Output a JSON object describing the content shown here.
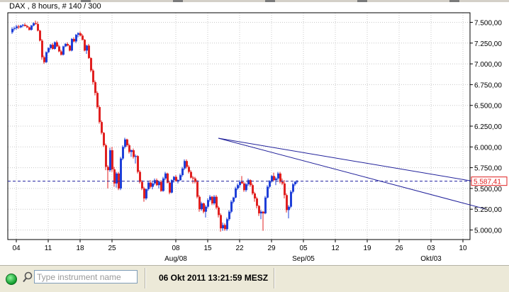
{
  "title": "DAX , 8 hours, # 140 / 300",
  "price_tag": "5.587,41",
  "status": {
    "search_placeholder": "Type instrument name",
    "datetime": "06 Okt 2011 13:21:59 MESZ"
  },
  "colors": {
    "up": "#1f3fd8",
    "down": "#e02020",
    "trend": "#20209a",
    "grid": "#c8c8c8",
    "price_line": "#2020a0"
  },
  "chart_data": {
    "type": "candlestick",
    "instrument": "DAX",
    "interval": "8 hours",
    "ylim": [
      4850,
      7650
    ],
    "y_ticks": [
      5000,
      5250,
      5500,
      5750,
      6000,
      6250,
      6500,
      6750,
      7000,
      7250,
      7500
    ],
    "y_tick_labels": [
      "5.000,00",
      "5.250,00",
      "5.500,00",
      "5.750,00",
      "6.000,00",
      "6.250,00",
      "6.500,00",
      "6.750,00",
      "7.000,00",
      "7.250,00",
      "7.500,00"
    ],
    "x_ticks": [
      {
        "i": 2,
        "label": "04"
      },
      {
        "i": 17,
        "label": "11"
      },
      {
        "i": 32,
        "label": "18"
      },
      {
        "i": 47,
        "label": "25"
      },
      {
        "i": 77,
        "label": "08"
      },
      {
        "i": 92,
        "label": "15"
      },
      {
        "i": 107,
        "label": "22"
      },
      {
        "i": 122,
        "label": "29"
      },
      {
        "i": 137,
        "label": "05"
      },
      {
        "i": 152,
        "label": "12"
      },
      {
        "i": 167,
        "label": "19"
      },
      {
        "i": 182,
        "label": "26"
      },
      {
        "i": 197,
        "label": "03"
      },
      {
        "i": 212,
        "label": "10"
      }
    ],
    "x_major_labels": [
      {
        "i": 77,
        "label": "Aug/08"
      },
      {
        "i": 137,
        "label": "Sep/05"
      },
      {
        "i": 197,
        "label": "Okt/03"
      }
    ],
    "last_price": 5587.41,
    "candles": [
      [
        7380,
        7440,
        7360,
        7420
      ],
      [
        7420,
        7450,
        7400,
        7430
      ],
      [
        7430,
        7470,
        7410,
        7450
      ],
      [
        7450,
        7470,
        7420,
        7440
      ],
      [
        7440,
        7470,
        7430,
        7460
      ],
      [
        7460,
        7480,
        7440,
        7470
      ],
      [
        7470,
        7490,
        7450,
        7455
      ],
      [
        7455,
        7470,
        7430,
        7440
      ],
      [
        7440,
        7450,
        7400,
        7410
      ],
      [
        7410,
        7470,
        7400,
        7460
      ],
      [
        7460,
        7500,
        7450,
        7490
      ],
      [
        7490,
        7520,
        7470,
        7480
      ],
      [
        7480,
        7510,
        7390,
        7400
      ],
      [
        7400,
        7410,
        7270,
        7280
      ],
      [
        7280,
        7300,
        7050,
        7080
      ],
      [
        7080,
        7100,
        7000,
        7020
      ],
      [
        7020,
        7150,
        7010,
        7140
      ],
      [
        7140,
        7200,
        7130,
        7190
      ],
      [
        7190,
        7240,
        7170,
        7230
      ],
      [
        7230,
        7250,
        7170,
        7180
      ],
      [
        7180,
        7270,
        7170,
        7260
      ],
      [
        7260,
        7280,
        7200,
        7210
      ],
      [
        7210,
        7230,
        7140,
        7150
      ],
      [
        7150,
        7170,
        7100,
        7110
      ],
      [
        7110,
        7220,
        7100,
        7210
      ],
      [
        7210,
        7250,
        7200,
        7240
      ],
      [
        7240,
        7260,
        7210,
        7220
      ],
      [
        7220,
        7230,
        7150,
        7160
      ],
      [
        7160,
        7310,
        7150,
        7300
      ],
      [
        7300,
        7320,
        7260,
        7270
      ],
      [
        7270,
        7360,
        7250,
        7350
      ],
      [
        7350,
        7380,
        7320,
        7370
      ],
      [
        7370,
        7390,
        7330,
        7340
      ],
      [
        7340,
        7360,
        7280,
        7290
      ],
      [
        7290,
        7300,
        7150,
        7160
      ],
      [
        7160,
        7230,
        7120,
        7220
      ],
      [
        7220,
        7240,
        7060,
        7070
      ],
      [
        7070,
        7080,
        6900,
        6920
      ],
      [
        6920,
        6940,
        6750,
        6780
      ],
      [
        6780,
        6800,
        6620,
        6650
      ],
      [
        6650,
        6670,
        6460,
        6480
      ],
      [
        6480,
        6500,
        6280,
        6300
      ],
      [
        6300,
        6320,
        6150,
        6170
      ],
      [
        6170,
        6180,
        6000,
        6020
      ],
      [
        6020,
        6040,
        5720,
        5760
      ],
      [
        5760,
        5780,
        5500,
        5720
      ],
      [
        5720,
        5990,
        5700,
        5960
      ],
      [
        5960,
        6000,
        5700,
        5730
      ],
      [
        5730,
        5760,
        5520,
        5560
      ],
      [
        5560,
        5700,
        5510,
        5680
      ],
      [
        5680,
        5700,
        5480,
        5500
      ],
      [
        5500,
        5880,
        5480,
        5860
      ],
      [
        5860,
        6020,
        5840,
        6000
      ],
      [
        6000,
        6110,
        5980,
        6090
      ],
      [
        6090,
        6100,
        6000,
        6020
      ],
      [
        6020,
        6040,
        5920,
        5940
      ],
      [
        5940,
        5970,
        5880,
        5960
      ],
      [
        5960,
        5980,
        5860,
        5880
      ],
      [
        5880,
        5910,
        5800,
        5890
      ],
      [
        5890,
        5900,
        5680,
        5700
      ],
      [
        5700,
        5720,
        5560,
        5580
      ],
      [
        5580,
        5600,
        5480,
        5500
      ],
      [
        5500,
        5520,
        5340,
        5380
      ],
      [
        5380,
        5500,
        5360,
        5490
      ],
      [
        5490,
        5590,
        5470,
        5570
      ],
      [
        5570,
        5600,
        5500,
        5520
      ],
      [
        5520,
        5580,
        5490,
        5560
      ],
      [
        5560,
        5620,
        5540,
        5600
      ],
      [
        5600,
        5620,
        5530,
        5540
      ],
      [
        5540,
        5590,
        5500,
        5580
      ],
      [
        5580,
        5600,
        5460,
        5470
      ],
      [
        5470,
        5640,
        5460,
        5620
      ],
      [
        5620,
        5700,
        5600,
        5680
      ],
      [
        5680,
        5690,
        5560,
        5570
      ],
      [
        5570,
        5590,
        5430,
        5450
      ],
      [
        5450,
        5610,
        5440,
        5600
      ],
      [
        5600,
        5650,
        5570,
        5640
      ],
      [
        5640,
        5660,
        5580,
        5590
      ],
      [
        5590,
        5610,
        5560,
        5600
      ],
      [
        5600,
        5680,
        5590,
        5660
      ],
      [
        5660,
        5760,
        5640,
        5740
      ],
      [
        5740,
        5850,
        5720,
        5830
      ],
      [
        5830,
        5850,
        5740,
        5760
      ],
      [
        5760,
        5780,
        5680,
        5700
      ],
      [
        5700,
        5720,
        5620,
        5630
      ],
      [
        5630,
        5650,
        5560,
        5620
      ],
      [
        5620,
        5640,
        5560,
        5580
      ],
      [
        5580,
        5600,
        5380,
        5400
      ],
      [
        5400,
        5420,
        5220,
        5250
      ],
      [
        5250,
        5340,
        5230,
        5320
      ],
      [
        5320,
        5330,
        5200,
        5220
      ],
      [
        5220,
        5300,
        5150,
        5280
      ],
      [
        5280,
        5380,
        5260,
        5360
      ],
      [
        5360,
        5420,
        5340,
        5400
      ],
      [
        5400,
        5410,
        5300,
        5320
      ],
      [
        5320,
        5420,
        5300,
        5400
      ],
      [
        5400,
        5420,
        5250,
        5270
      ],
      [
        5270,
        5290,
        5150,
        5180
      ],
      [
        5180,
        5200,
        4980,
        5020
      ],
      [
        5020,
        5090,
        4990,
        5060
      ],
      [
        5060,
        5080,
        4990,
        5010
      ],
      [
        5010,
        5150,
        4990,
        5130
      ],
      [
        5130,
        5240,
        5110,
        5220
      ],
      [
        5220,
        5360,
        5200,
        5340
      ],
      [
        5340,
        5400,
        5320,
        5390
      ],
      [
        5390,
        5520,
        5380,
        5500
      ],
      [
        5500,
        5560,
        5480,
        5540
      ],
      [
        5540,
        5600,
        5510,
        5580
      ],
      [
        5580,
        5650,
        5560,
        5560
      ],
      [
        5560,
        5580,
        5460,
        5480
      ],
      [
        5480,
        5570,
        5460,
        5550
      ],
      [
        5550,
        5620,
        5530,
        5600
      ],
      [
        5600,
        5610,
        5520,
        5540
      ],
      [
        5540,
        5560,
        5420,
        5440
      ],
      [
        5440,
        5460,
        5340,
        5380
      ],
      [
        5380,
        5400,
        5260,
        5290
      ],
      [
        5290,
        5300,
        5170,
        5200
      ],
      [
        5200,
        5240,
        5130,
        5220
      ],
      [
        5220,
        5230,
        4990,
        5200
      ],
      [
        5200,
        5410,
        5190,
        5390
      ],
      [
        5390,
        5540,
        5380,
        5520
      ],
      [
        5520,
        5600,
        5500,
        5590
      ],
      [
        5590,
        5660,
        5570,
        5650
      ],
      [
        5650,
        5690,
        5590,
        5600
      ],
      [
        5600,
        5640,
        5540,
        5620
      ],
      [
        5620,
        5700,
        5600,
        5680
      ],
      [
        5680,
        5700,
        5560,
        5580
      ],
      [
        5580,
        5620,
        5540,
        5560
      ],
      [
        5560,
        5600,
        5380,
        5420
      ],
      [
        5420,
        5440,
        5210,
        5240
      ],
      [
        5240,
        5300,
        5140,
        5280
      ],
      [
        5280,
        5480,
        5260,
        5460
      ],
      [
        5460,
        5570,
        5440,
        5550
      ],
      [
        5550,
        5590,
        5530,
        5580
      ],
      [
        5580,
        5600,
        5560,
        5590
      ]
    ],
    "trendlines": [
      {
        "from": {
          "i": 97,
          "y": 6105
        },
        "to": {
          "i": 223,
          "y": 5560
        }
      },
      {
        "from": {
          "i": 97,
          "y": 6105
        },
        "to": {
          "i": 223,
          "y": 5250
        }
      }
    ]
  }
}
